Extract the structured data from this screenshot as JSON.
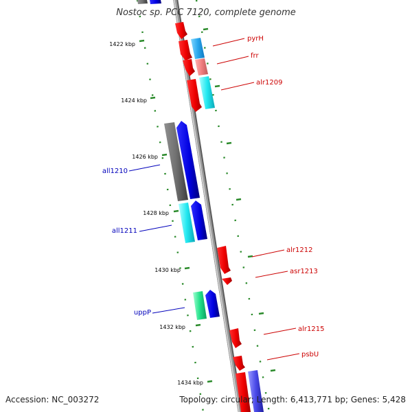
{
  "title": "Nostoc sp. PCC 7120, complete genome",
  "footer": {
    "accession": "Accession: NC_003272",
    "summary": "Topology: circular; Length: 6,413,771 bp; Genes: 5,428"
  },
  "colors": {
    "backbone": "#8a8a8a",
    "tick": "#2a8a2a",
    "label_forward": "#cc0000",
    "label_reverse": "#0000bb"
  },
  "kbp_labels": [
    "1422 kbp",
    "1424 kbp",
    "1426 kbp",
    "1428 kbp",
    "1430 kbp",
    "1432 kbp",
    "1434 kbp"
  ],
  "gene_labels": [
    "pyrH",
    "frr",
    "alr1209",
    "all1210",
    "all1211",
    "alr1212",
    "asr1213",
    "uppP",
    "alr1215",
    "psbU"
  ]
}
